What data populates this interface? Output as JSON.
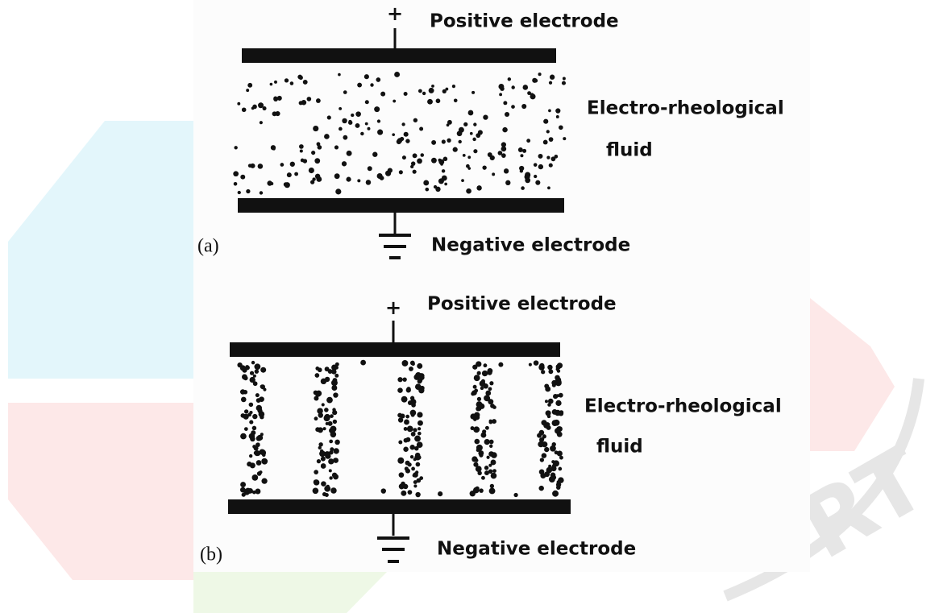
{
  "panels": [
    {
      "label": "(a)",
      "plus": "+",
      "positive": "Positive electrode",
      "fluid": [
        "Electro-rheological",
        "fluid"
      ],
      "negative": "Negative electrode"
    },
    {
      "label": "(b)",
      "plus": "+",
      "positive": "Positive electrode",
      "fluid": [
        "Electro-rheological",
        "fluid"
      ],
      "negative": "Negative electrode"
    }
  ],
  "watermark": "RT"
}
